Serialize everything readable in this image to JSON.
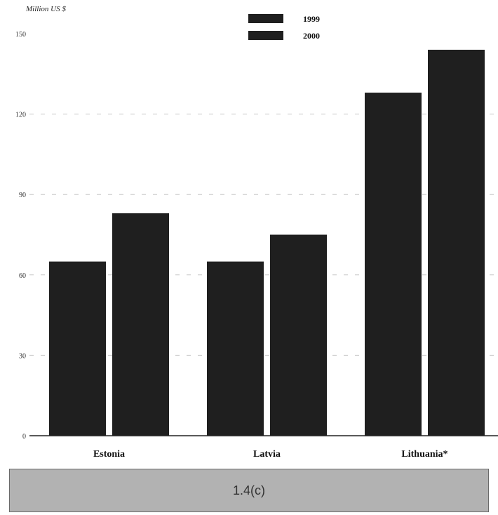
{
  "caption": "1.4(c)",
  "chart_data": {
    "type": "bar",
    "ylabel": "Million US $",
    "categories": [
      "Estonia",
      "Latvia",
      "Lithuania*"
    ],
    "series": [
      {
        "name": "1999",
        "values": [
          65,
          65,
          128
        ]
      },
      {
        "name": "2000",
        "values": [
          83,
          75,
          144
        ]
      }
    ],
    "ylim": [
      0,
      150
    ],
    "yticks": [
      0,
      30,
      60,
      90,
      120,
      150
    ],
    "legend_position": "top-center",
    "colors": {
      "bar": "#1f1f1f",
      "axis": "#222222",
      "grid": "#9a9a9a"
    }
  }
}
